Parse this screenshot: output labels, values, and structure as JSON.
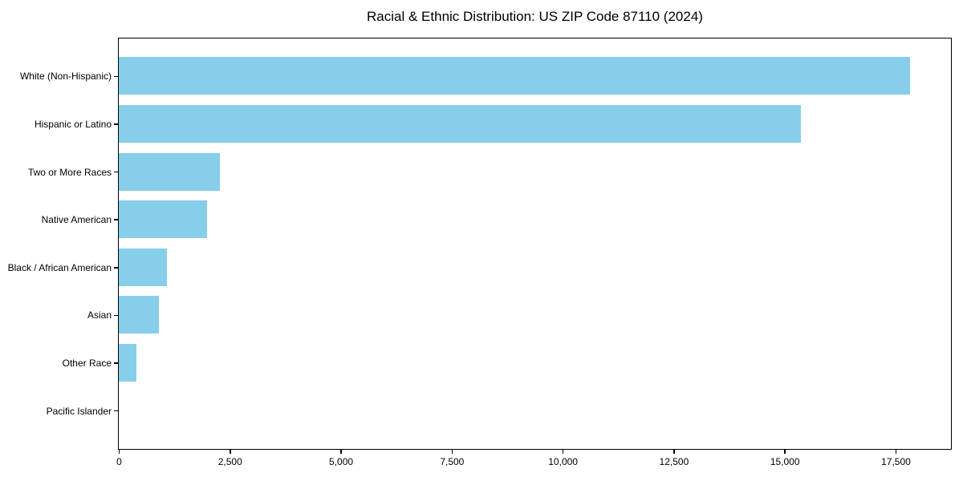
{
  "figure": {
    "background": "#ffffff",
    "text_color": "#000000",
    "spine_color": "#000000"
  },
  "chart_data": {
    "type": "bar",
    "orientation": "horizontal",
    "title": "Racial & Ethnic Distribution: US ZIP Code 87110 (2024)",
    "xlabel": "",
    "ylabel": "",
    "categories": [
      "White (Non-Hispanic)",
      "Hispanic or Latino",
      "Two or More Races",
      "Native American",
      "Black / African American",
      "Asian",
      "Other Race",
      "Pacific Islander"
    ],
    "values": [
      17820,
      15360,
      2270,
      1990,
      1080,
      900,
      390,
      0
    ],
    "xlim": [
      0,
      18730
    ],
    "x_ticks": [
      0,
      2500,
      5000,
      7500,
      10000,
      12500,
      15000,
      17500
    ],
    "x_tick_labels": [
      "0",
      "2,500",
      "5,000",
      "7,500",
      "10,000",
      "12,500",
      "15,000",
      "17,500"
    ],
    "bar_color": "#87CEEB",
    "grid": false,
    "legend": null
  }
}
